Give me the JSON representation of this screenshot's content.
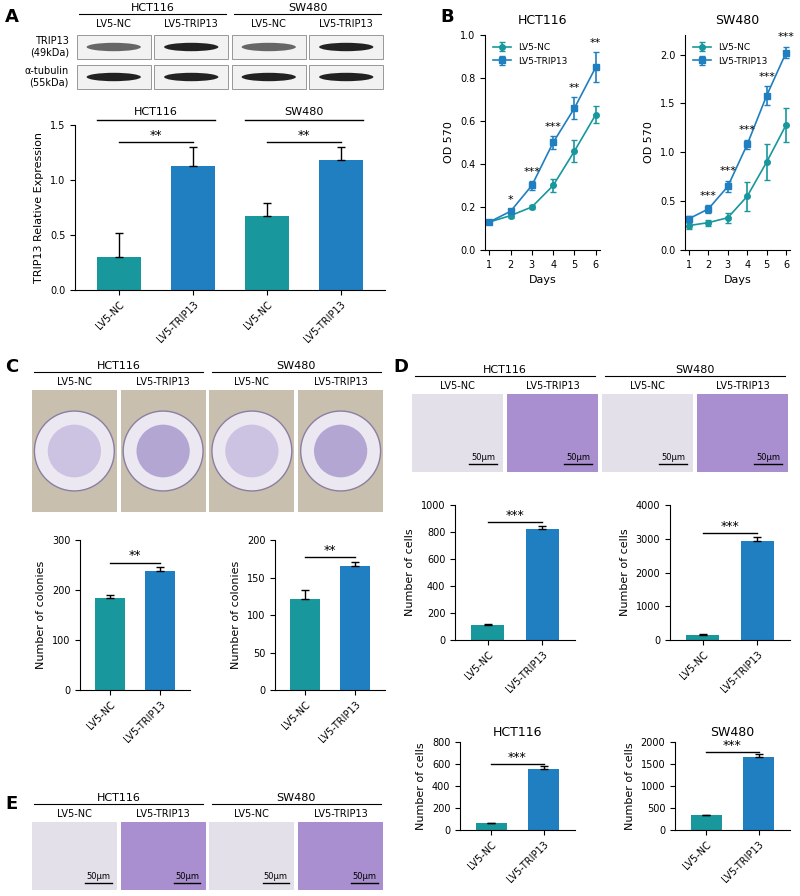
{
  "panel_labels": [
    "A",
    "B",
    "C",
    "D",
    "E"
  ],
  "chart_data": [
    {
      "type": "bar",
      "categories": [
        "LV5-NC",
        "LV5-TRIP13",
        "LV5-NC",
        "LV5-TRIP13"
      ],
      "values": [
        0.3,
        1.13,
        0.67,
        1.18
      ],
      "errors": [
        0.22,
        0.17,
        0.12,
        0.12
      ],
      "colors": [
        "#18979c",
        "#1f7fc0",
        "#18979c",
        "#1f7fc0"
      ],
      "ylabel": "TRIP13 Relative Expression",
      "ylim": [
        0,
        1.5
      ],
      "yticks": [
        {
          "value": 0,
          "label": "0.0"
        },
        0.5,
        {
          "value": 1,
          "label": "1.0"
        },
        1.5
      ],
      "groups": [
        {
          "name": "HCT116",
          "members": [
            0,
            1
          ]
        },
        {
          "name": "SW480",
          "members": [
            2,
            3
          ]
        }
      ],
      "significance": [
        {
          "pair": [
            0,
            1
          ],
          "label": "**"
        },
        {
          "pair": [
            2,
            3
          ],
          "label": "**"
        }
      ]
    },
    {
      "type": "line",
      "title": "HCT116",
      "xlabel": "Days",
      "ylabel": "OD 570",
      "x": [
        1,
        2,
        3,
        4,
        5,
        6
      ],
      "xlim": [
        0.8,
        6.2
      ],
      "xticks": [
        1,
        2,
        3,
        4,
        5,
        6
      ],
      "ylim": [
        0,
        1.0
      ],
      "yticks": [
        {
          "value": 0,
          "label": "0.0"
        },
        0.2,
        0.4,
        0.6,
        0.8,
        {
          "value": 1,
          "label": "1.0"
        }
      ],
      "legend": "upper left",
      "series": [
        {
          "name": "LV5-NC",
          "color": "#18979c",
          "marker": "circle",
          "values": [
            0.13,
            0.16,
            0.2,
            0.3,
            0.46,
            0.63
          ],
          "errors": [
            0.01,
            0.01,
            0.01,
            0.03,
            0.05,
            0.04
          ]
        },
        {
          "name": "LV5-TRIP13",
          "color": "#1f7fc0",
          "marker": "square",
          "values": [
            0.13,
            0.18,
            0.3,
            0.5,
            0.66,
            0.85
          ],
          "errors": [
            0.01,
            0.01,
            0.02,
            0.03,
            0.05,
            0.07
          ]
        }
      ],
      "significance": [
        null,
        "*",
        "***",
        "***",
        "**",
        "**"
      ]
    },
    {
      "type": "line",
      "title": "SW480",
      "xlabel": "Days",
      "ylabel": "OD 570",
      "x": [
        1,
        2,
        3,
        4,
        5,
        6
      ],
      "xlim": [
        0.8,
        6.2
      ],
      "xticks": [
        1,
        2,
        3,
        4,
        5,
        6
      ],
      "ylim": [
        0,
        2.2
      ],
      "yticks": [
        {
          "value": 0,
          "label": "0.0"
        },
        0.5,
        {
          "value": 1,
          "label": "1.0"
        },
        1.5,
        {
          "value": 2,
          "label": "2.0"
        }
      ],
      "legend": "upper left",
      "series": [
        {
          "name": "LV5-NC",
          "color": "#18979c",
          "marker": "circle",
          "values": [
            0.25,
            0.28,
            0.33,
            0.55,
            0.9,
            1.28
          ],
          "errors": [
            0.03,
            0.03,
            0.05,
            0.15,
            0.18,
            0.17
          ]
        },
        {
          "name": "LV5-TRIP13",
          "color": "#1f7fc0",
          "marker": "square",
          "values": [
            0.32,
            0.42,
            0.65,
            1.08,
            1.58,
            2.02
          ],
          "errors": [
            0.03,
            0.04,
            0.06,
            0.05,
            0.1,
            0.06
          ]
        }
      ],
      "significance": [
        null,
        "***",
        "***",
        "***",
        "***",
        "***"
      ]
    },
    {
      "type": "bar",
      "categories": [
        "LV5-NC",
        "LV5-TRIP13"
      ],
      "values": [
        185,
        238
      ],
      "errors": [
        6,
        8
      ],
      "colors": [
        "#18979c",
        "#1f7fc0"
      ],
      "ylabel": "Number of colonies",
      "ylim": [
        0,
        300
      ],
      "yticks": [
        0,
        100,
        200,
        300
      ],
      "significance": [
        {
          "pair": [
            0,
            1
          ],
          "label": "**"
        }
      ]
    },
    {
      "type": "bar",
      "categories": [
        "LV5-NC",
        "LV5-TRIP13"
      ],
      "values": [
        122,
        165
      ],
      "errors": [
        12,
        6
      ],
      "colors": [
        "#18979c",
        "#1f7fc0"
      ],
      "ylabel": "Number of colonies",
      "ylim": [
        0,
        200
      ],
      "yticks": [
        0,
        50,
        100,
        150,
        200
      ],
      "significance": [
        {
          "pair": [
            0,
            1
          ],
          "label": "**"
        }
      ]
    },
    {
      "type": "bar",
      "categories": [
        "LV5-NC",
        "LV5-TRIP13"
      ],
      "values": [
        110,
        825
      ],
      "errors": [
        8,
        20
      ],
      "colors": [
        "#18979c",
        "#1f7fc0"
      ],
      "ylabel": "Number of cells",
      "ylim": [
        0,
        1000
      ],
      "yticks": [
        0,
        200,
        400,
        600,
        800,
        1000
      ],
      "significance": [
        {
          "pair": [
            0,
            1
          ],
          "label": "***"
        }
      ]
    },
    {
      "type": "bar",
      "categories": [
        "LV5-NC",
        "LV5-TRIP13"
      ],
      "values": [
        160,
        2920
      ],
      "errors": [
        10,
        120
      ],
      "colors": [
        "#18979c",
        "#1f7fc0"
      ],
      "ylabel": "Number of cells",
      "ylim": [
        0,
        4000
      ],
      "yticks": [
        0,
        1000,
        2000,
        3000,
        4000
      ],
      "significance": [
        {
          "pair": [
            0,
            1
          ],
          "label": "***"
        }
      ]
    },
    {
      "type": "bar",
      "title": "HCT116",
      "categories": [
        "LV5-NC",
        "LV5-TRIP13"
      ],
      "values": [
        62,
        555
      ],
      "errors": [
        5,
        25
      ],
      "colors": [
        "#18979c",
        "#1f7fc0"
      ],
      "ylabel": "Number of cells",
      "ylim": [
        0,
        800
      ],
      "yticks": [
        0,
        200,
        400,
        600,
        800
      ],
      "significance": [
        {
          "pair": [
            0,
            1
          ],
          "label": "***"
        }
      ]
    },
    {
      "type": "bar",
      "title": "SW480",
      "categories": [
        "LV5-NC",
        "LV5-TRIP13"
      ],
      "values": [
        340,
        1650
      ],
      "errors": [
        10,
        70
      ],
      "colors": [
        "#18979c",
        "#1f7fc0"
      ],
      "ylabel": "Number of cells",
      "ylim": [
        0,
        2000
      ],
      "yticks": [
        0,
        500,
        1000,
        1500,
        2000
      ],
      "significance": [
        {
          "pair": [
            0,
            1
          ],
          "label": "***"
        }
      ]
    }
  ],
  "image_panels": [
    {
      "type": "blot",
      "groups": [
        {
          "name": "HCT116",
          "columns": [
            "LV5-NC",
            "LV5-TRIP13"
          ]
        },
        {
          "name": "SW480",
          "columns": [
            "LV5-NC",
            "LV5-TRIP13"
          ]
        }
      ],
      "rows": [
        "TRIP13\n(49kDa)",
        "α-tubulin\n(55kDa)"
      ]
    },
    {
      "type": "plate",
      "groups": [
        {
          "name": "HCT116",
          "columns": [
            "LV5-NC",
            "LV5-TRIP13"
          ]
        },
        {
          "name": "SW480",
          "columns": [
            "LV5-NC",
            "LV5-TRIP13"
          ]
        }
      ]
    },
    {
      "type": "micrograph",
      "groups": [
        {
          "name": "HCT116",
          "columns": [
            "LV5-NC",
            "LV5-TRIP13"
          ]
        },
        {
          "name": "SW480",
          "columns": [
            "LV5-NC",
            "LV5-TRIP13"
          ]
        }
      ],
      "scale_bar": "50μm"
    },
    {
      "type": "micrograph",
      "groups": [
        {
          "name": "HCT116",
          "columns": [
            "LV5-NC",
            "LV5-TRIP13"
          ]
        },
        {
          "name": "SW480",
          "columns": [
            "LV5-NC",
            "LV5-TRIP13"
          ]
        }
      ],
      "scale_bar": "50μm"
    }
  ]
}
